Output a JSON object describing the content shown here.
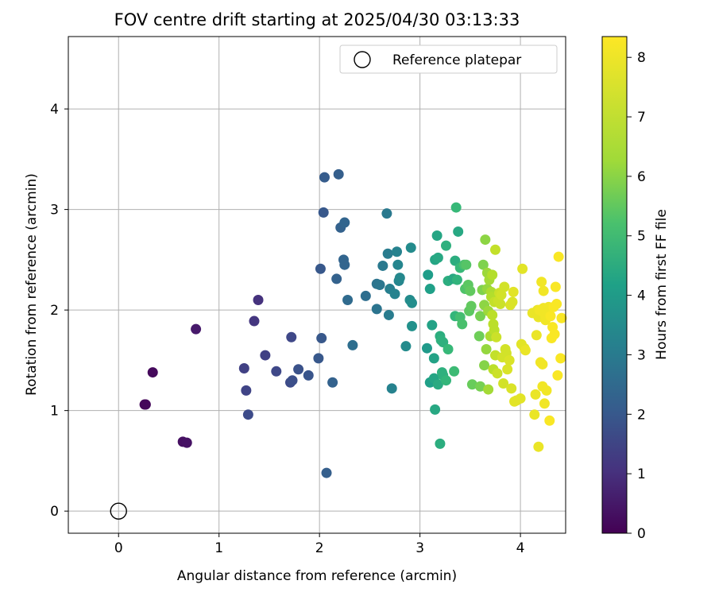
{
  "chart_data": {
    "type": "scatter",
    "title": "FOV centre drift starting at 2025/04/30 03:13:33",
    "xlabel": "Angular distance from reference (arcmin)",
    "ylabel": "Rotation from reference (arcmin)",
    "xlim": [
      -0.5,
      4.45
    ],
    "ylim": [
      -0.22,
      4.72
    ],
    "xticks": [
      "0",
      "1",
      "2",
      "3",
      "4"
    ],
    "yticks": [
      "0",
      "1",
      "2",
      "3",
      "4"
    ],
    "grid": true,
    "legend": {
      "position": "top-right",
      "entries": [
        "Reference platepar"
      ]
    },
    "reference_point": {
      "x": 0,
      "y": 0
    },
    "colorbar": {
      "label": "Hours from first FF file",
      "range": [
        0,
        8.35
      ],
      "ticks": [
        "0",
        "1",
        "2",
        "3",
        "4",
        "5",
        "6",
        "7",
        "8"
      ],
      "colormap": "viridis"
    },
    "series": [
      {
        "points": [
          [
            0.26,
            1.06,
            0.1
          ],
          [
            0.27,
            1.06,
            0.15
          ],
          [
            0.34,
            1.38,
            0.2
          ],
          [
            0.64,
            0.69,
            0.35
          ],
          [
            0.68,
            0.68,
            0.4
          ],
          [
            0.77,
            1.81,
            0.6
          ],
          [
            1.25,
            1.42,
            1.6
          ],
          [
            1.27,
            1.2,
            1.7
          ],
          [
            1.29,
            0.96,
            1.9
          ],
          [
            1.35,
            1.89,
            1.3
          ],
          [
            1.39,
            2.1,
            1.2
          ],
          [
            1.46,
            1.55,
            1.6
          ],
          [
            1.57,
            1.39,
            1.8
          ],
          [
            1.71,
            1.28,
            1.9
          ],
          [
            1.72,
            1.73,
            1.8
          ],
          [
            1.73,
            1.3,
            2.0
          ],
          [
            1.79,
            1.41,
            2.1
          ],
          [
            1.89,
            1.35,
            2.2
          ],
          [
            1.99,
            1.52,
            2.3
          ],
          [
            2.01,
            2.41,
            2.3
          ],
          [
            2.02,
            1.72,
            2.3
          ],
          [
            2.04,
            2.97,
            2.3
          ],
          [
            2.05,
            3.32,
            2.4
          ],
          [
            2.07,
            0.38,
            2.5
          ],
          [
            2.13,
            1.28,
            2.6
          ],
          [
            2.17,
            2.31,
            2.6
          ],
          [
            2.19,
            3.35,
            2.5
          ],
          [
            2.21,
            2.82,
            2.6
          ],
          [
            2.24,
            2.5,
            2.7
          ],
          [
            2.25,
            2.45,
            2.7
          ],
          [
            2.25,
            2.87,
            2.7
          ],
          [
            2.28,
            2.1,
            2.9
          ],
          [
            2.33,
            1.65,
            3.0
          ],
          [
            2.46,
            2.14,
            3.0
          ],
          [
            2.57,
            2.01,
            3.2
          ],
          [
            2.57,
            2.26,
            3.2
          ],
          [
            2.6,
            2.25,
            3.3
          ],
          [
            2.63,
            2.44,
            3.4
          ],
          [
            2.67,
            2.96,
            3.4
          ],
          [
            2.68,
            2.56,
            3.5
          ],
          [
            2.69,
            1.95,
            3.5
          ],
          [
            2.7,
            2.21,
            3.6
          ],
          [
            2.72,
            1.22,
            3.7
          ],
          [
            2.75,
            2.16,
            3.7
          ],
          [
            2.77,
            2.58,
            3.7
          ],
          [
            2.78,
            2.45,
            3.8
          ],
          [
            2.79,
            2.29,
            3.8
          ],
          [
            2.8,
            2.32,
            3.9
          ],
          [
            2.86,
            1.64,
            4.0
          ],
          [
            2.9,
            2.1,
            4.0
          ],
          [
            2.91,
            2.62,
            4.0
          ],
          [
            2.92,
            2.07,
            4.1
          ],
          [
            2.92,
            1.84,
            4.2
          ],
          [
            3.07,
            1.62,
            4.5
          ],
          [
            3.08,
            2.35,
            4.6
          ],
          [
            3.1,
            1.28,
            4.7
          ],
          [
            3.1,
            2.21,
            4.7
          ],
          [
            3.12,
            1.85,
            4.8
          ],
          [
            3.14,
            1.52,
            4.8
          ],
          [
            3.14,
            1.32,
            4.9
          ],
          [
            3.15,
            1.01,
            5.0
          ],
          [
            3.15,
            2.5,
            4.9
          ],
          [
            3.17,
            2.74,
            4.9
          ],
          [
            3.18,
            1.26,
            5.1
          ],
          [
            3.18,
            2.52,
            5.0
          ],
          [
            3.2,
            0.67,
            5.2
          ],
          [
            3.2,
            1.74,
            5.2
          ],
          [
            3.21,
            1.7,
            5.3
          ],
          [
            3.22,
            1.38,
            5.3
          ],
          [
            3.23,
            1.35,
            5.3
          ],
          [
            3.23,
            1.68,
            5.3
          ],
          [
            3.26,
            2.64,
            5.3
          ],
          [
            3.26,
            1.3,
            5.5
          ],
          [
            3.28,
            1.61,
            5.6
          ],
          [
            3.28,
            2.29,
            5.2
          ],
          [
            3.33,
            2.31,
            5.0
          ],
          [
            3.34,
            1.39,
            5.7
          ],
          [
            3.35,
            1.94,
            5.5
          ],
          [
            3.35,
            2.49,
            5.2
          ],
          [
            3.36,
            3.02,
            5.6
          ],
          [
            3.37,
            2.3,
            5.4
          ],
          [
            3.38,
            2.78,
            5.0
          ],
          [
            3.4,
            1.93,
            5.8
          ],
          [
            3.4,
            2.42,
            5.6
          ],
          [
            3.42,
            1.86,
            5.9
          ],
          [
            3.44,
            2.45,
            5.9
          ],
          [
            3.45,
            2.21,
            6.0
          ],
          [
            3.46,
            2.45,
            6.1
          ],
          [
            3.48,
            2.25,
            6.2
          ],
          [
            3.49,
            1.99,
            6.2
          ],
          [
            3.5,
            2.19,
            6.3
          ],
          [
            3.51,
            2.04,
            6.3
          ],
          [
            3.52,
            1.26,
            6.4
          ],
          [
            3.59,
            1.74,
            6.5
          ],
          [
            3.6,
            1.24,
            6.6
          ],
          [
            3.6,
            1.94,
            6.6
          ],
          [
            3.62,
            2.2,
            6.7
          ],
          [
            3.63,
            2.45,
            6.7
          ],
          [
            3.64,
            1.45,
            6.8
          ],
          [
            3.64,
            2.05,
            6.9
          ],
          [
            3.65,
            2.7,
            6.9
          ],
          [
            3.66,
            1.61,
            7.0
          ],
          [
            3.67,
            2.21,
            7.0
          ],
          [
            3.67,
            2.37,
            7.1
          ],
          [
            3.68,
            1.99,
            7.1
          ],
          [
            3.68,
            1.21,
            7.2
          ],
          [
            3.69,
            2.3,
            7.2
          ],
          [
            3.7,
            1.74,
            7.3
          ],
          [
            3.71,
            2.18,
            7.3
          ],
          [
            3.71,
            2.13,
            7.4
          ],
          [
            3.72,
            2.35,
            7.4
          ],
          [
            3.72,
            1.95,
            7.5
          ],
          [
            3.73,
            1.86,
            7.5
          ],
          [
            3.73,
            1.41,
            7.5
          ],
          [
            3.74,
            1.8,
            7.5
          ],
          [
            3.74,
            2.08,
            7.6
          ],
          [
            3.75,
            1.55,
            7.6
          ],
          [
            3.75,
            2.6,
            7.6
          ],
          [
            3.76,
            1.73,
            7.7
          ],
          [
            3.77,
            1.37,
            7.7
          ],
          [
            3.78,
            2.09,
            7.7
          ],
          [
            3.79,
            2.17,
            7.7
          ],
          [
            3.8,
            2.06,
            7.7
          ],
          [
            3.81,
            2.15,
            7.8
          ],
          [
            3.82,
            1.53,
            7.8
          ],
          [
            3.83,
            1.27,
            7.8
          ],
          [
            3.84,
            2.23,
            7.8
          ],
          [
            3.85,
            1.61,
            7.8
          ],
          [
            3.86,
            1.57,
            7.8
          ],
          [
            3.87,
            1.41,
            7.9
          ],
          [
            3.89,
            1.5,
            7.9
          ],
          [
            3.9,
            2.05,
            7.9
          ],
          [
            3.91,
            1.22,
            7.9
          ],
          [
            3.92,
            2.08,
            7.9
          ],
          [
            3.93,
            2.18,
            8.0
          ],
          [
            3.94,
            1.09,
            8.0
          ],
          [
            3.96,
            1.1,
            8.0
          ],
          [
            4.0,
            1.12,
            8.0
          ],
          [
            4.01,
            1.66,
            8.0
          ],
          [
            4.02,
            2.41,
            8.0
          ],
          [
            4.04,
            1.62,
            8.0
          ],
          [
            4.05,
            1.6,
            8.1
          ],
          [
            4.12,
            1.97,
            8.1
          ],
          [
            4.14,
            0.96,
            8.1
          ],
          [
            4.15,
            1.16,
            8.1
          ],
          [
            4.16,
            1.75,
            8.1
          ],
          [
            4.17,
            2.0,
            8.1
          ],
          [
            4.18,
            0.64,
            8.1
          ],
          [
            4.18,
            1.93,
            8.1
          ],
          [
            4.19,
            2.0,
            8.2
          ],
          [
            4.2,
            1.48,
            8.2
          ],
          [
            4.21,
            1.99,
            8.2
          ],
          [
            4.21,
            2.28,
            8.2
          ],
          [
            4.22,
            1.24,
            8.2
          ],
          [
            4.22,
            1.46,
            8.2
          ],
          [
            4.23,
            2.19,
            8.2
          ],
          [
            4.23,
            2.02,
            8.2
          ],
          [
            4.24,
            1.07,
            8.2
          ],
          [
            4.25,
            1.9,
            8.2
          ],
          [
            4.25,
            1.93,
            8.2
          ],
          [
            4.26,
            1.2,
            8.2
          ],
          [
            4.27,
            1.98,
            8.2
          ],
          [
            4.28,
            2.03,
            8.2
          ],
          [
            4.29,
            0.9,
            8.3
          ],
          [
            4.3,
            1.94,
            8.3
          ],
          [
            4.31,
            1.72,
            8.3
          ],
          [
            4.32,
            1.83,
            8.3
          ],
          [
            4.33,
            2.03,
            8.3
          ],
          [
            4.34,
            1.76,
            8.3
          ],
          [
            4.35,
            2.23,
            8.3
          ],
          [
            4.36,
            2.06,
            8.3
          ],
          [
            4.37,
            1.35,
            8.3
          ],
          [
            4.38,
            2.53,
            8.3
          ],
          [
            4.4,
            1.52,
            8.3
          ],
          [
            4.41,
            1.92,
            8.3
          ]
        ]
      }
    ]
  }
}
